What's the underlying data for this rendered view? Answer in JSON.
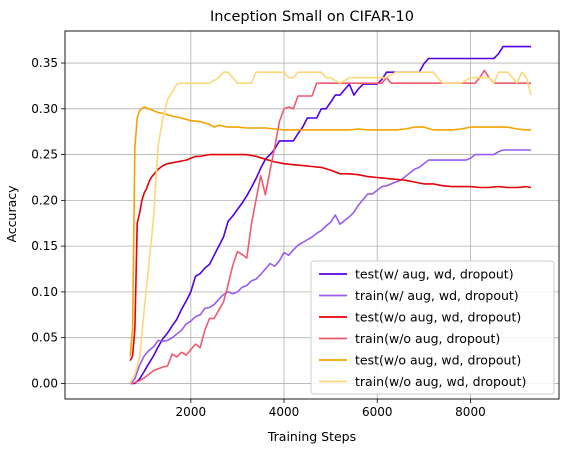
{
  "chart_data": {
    "type": "line",
    "title": "Inception Small on CIFAR-10",
    "xlabel": "Training Steps",
    "ylabel": "Accuracy",
    "xlim": [
      -700,
      9900
    ],
    "ylim": [
      -0.017,
      0.385
    ],
    "xticks": [
      2000,
      4000,
      6000,
      8000
    ],
    "xtick_labels": [
      "2000",
      "4000",
      "6000",
      "8000"
    ],
    "yticks": [
      0.0,
      0.05,
      0.1,
      0.15,
      0.2,
      0.25,
      0.3,
      0.35
    ],
    "ytick_labels": [
      "0.00",
      "0.05",
      "0.10",
      "0.15",
      "0.20",
      "0.25",
      "0.30",
      "0.35"
    ],
    "grid": true,
    "legend_position": "lower-right",
    "series": [
      {
        "name": "test(w/ aug, wd, dropout)",
        "color": "#5200e6",
        "x": [
          700,
          800,
          900,
          1000,
          1100,
          1200,
          1300,
          1400,
          1500,
          1600,
          1700,
          1800,
          1900,
          2000,
          2100,
          2200,
          2300,
          2400,
          2500,
          2600,
          2700,
          2800,
          2900,
          3000,
          3100,
          3200,
          3300,
          3400,
          3500,
          3600,
          3700,
          3800,
          3900,
          4000,
          4100,
          4200,
          4300,
          4400,
          4500,
          4600,
          4700,
          4800,
          4900,
          5000,
          5100,
          5200,
          5300,
          5400,
          5500,
          5600,
          5700,
          5800,
          5900,
          6000,
          6100,
          6200,
          6300,
          6400,
          6500,
          6600,
          6700,
          6800,
          6900,
          7000,
          7100,
          7200,
          7300,
          7400,
          7500,
          7600,
          7700,
          7800,
          7900,
          8000,
          8100,
          8200,
          8300,
          8400,
          8500,
          8600,
          8700,
          8800,
          8900,
          9000,
          9100,
          9200,
          9300
        ],
        "y": [
          0.0,
          0.0,
          0.005,
          0.013,
          0.022,
          0.03,
          0.04,
          0.049,
          0.055,
          0.063,
          0.07,
          0.081,
          0.09,
          0.1,
          0.117,
          0.12,
          0.126,
          0.13,
          0.14,
          0.15,
          0.16,
          0.177,
          0.183,
          0.19,
          0.197,
          0.205,
          0.214,
          0.224,
          0.235,
          0.245,
          0.25,
          0.256,
          0.265,
          0.265,
          0.265,
          0.265,
          0.273,
          0.28,
          0.29,
          0.29,
          0.29,
          0.3,
          0.3,
          0.307,
          0.315,
          0.315,
          0.321,
          0.327,
          0.315,
          0.322,
          0.327,
          0.327,
          0.327,
          0.327,
          0.332,
          0.34,
          0.34,
          0.34,
          0.34,
          0.34,
          0.34,
          0.34,
          0.34,
          0.349,
          0.355,
          0.355,
          0.355,
          0.355,
          0.355,
          0.355,
          0.355,
          0.355,
          0.355,
          0.355,
          0.355,
          0.355,
          0.355,
          0.355,
          0.355,
          0.36,
          0.368,
          0.368,
          0.368,
          0.368,
          0.368,
          0.368,
          0.368
        ]
      },
      {
        "name": "train(w/ aug, wd, dropout)",
        "color": "#9a5cf0",
        "x": [
          700,
          800,
          900,
          1000,
          1100,
          1200,
          1300,
          1400,
          1500,
          1600,
          1700,
          1800,
          1900,
          2000,
          2100,
          2200,
          2300,
          2400,
          2500,
          2600,
          2700,
          2800,
          2900,
          3000,
          3100,
          3200,
          3300,
          3400,
          3500,
          3600,
          3700,
          3800,
          3900,
          4000,
          4100,
          4200,
          4300,
          4400,
          4500,
          4600,
          4700,
          4800,
          4900,
          5000,
          5100,
          5200,
          5300,
          5400,
          5500,
          5600,
          5700,
          5800,
          5900,
          6000,
          6100,
          6200,
          6300,
          6400,
          6500,
          6600,
          6700,
          6800,
          6900,
          7000,
          7100,
          7200,
          7300,
          7400,
          7500,
          7600,
          7700,
          7800,
          7900,
          8000,
          8100,
          8200,
          8300,
          8400,
          8500,
          8600,
          8700,
          8800,
          8900,
          9000,
          9100,
          9200,
          9300
        ],
        "y": [
          0.0,
          0.005,
          0.02,
          0.03,
          0.036,
          0.04,
          0.047,
          0.046,
          0.047,
          0.05,
          0.054,
          0.058,
          0.065,
          0.068,
          0.073,
          0.075,
          0.082,
          0.083,
          0.086,
          0.092,
          0.097,
          0.1,
          0.098,
          0.1,
          0.105,
          0.107,
          0.112,
          0.114,
          0.119,
          0.125,
          0.131,
          0.128,
          0.134,
          0.143,
          0.14,
          0.146,
          0.151,
          0.154,
          0.157,
          0.16,
          0.164,
          0.167,
          0.172,
          0.176,
          0.184,
          0.174,
          0.178,
          0.182,
          0.187,
          0.195,
          0.201,
          0.207,
          0.207,
          0.211,
          0.215,
          0.216,
          0.218,
          0.22,
          0.222,
          0.226,
          0.23,
          0.234,
          0.236,
          0.24,
          0.244,
          0.244,
          0.244,
          0.244,
          0.244,
          0.244,
          0.244,
          0.244,
          0.244,
          0.246,
          0.25,
          0.25,
          0.25,
          0.25,
          0.25,
          0.253,
          0.255,
          0.255,
          0.255,
          0.255,
          0.255,
          0.255,
          0.255
        ]
      },
      {
        "name": "test(w/o aug, wd, dropout)",
        "color": "#e6000a",
        "x": [
          700,
          750,
          800,
          850,
          900,
          950,
          1000,
          1050,
          1100,
          1150,
          1200,
          1300,
          1400,
          1500,
          1600,
          1700,
          1800,
          1900,
          2000,
          2100,
          2200,
          2300,
          2400,
          2600,
          2800,
          3000,
          3200,
          3400,
          3600,
          3800,
          4000,
          4200,
          4400,
          4600,
          4800,
          5000,
          5200,
          5400,
          5600,
          5800,
          6000,
          6200,
          6400,
          6600,
          6800,
          7000,
          7200,
          7400,
          7600,
          7800,
          8000,
          8200,
          8400,
          8600,
          8800,
          9000,
          9200,
          9300
        ],
        "y": [
          0.025,
          0.03,
          0.06,
          0.175,
          0.186,
          0.2,
          0.208,
          0.213,
          0.22,
          0.225,
          0.228,
          0.234,
          0.238,
          0.24,
          0.241,
          0.242,
          0.243,
          0.244,
          0.246,
          0.248,
          0.248,
          0.249,
          0.25,
          0.25,
          0.25,
          0.25,
          0.25,
          0.248,
          0.245,
          0.242,
          0.24,
          0.239,
          0.238,
          0.237,
          0.236,
          0.233,
          0.229,
          0.229,
          0.228,
          0.226,
          0.225,
          0.224,
          0.223,
          0.222,
          0.22,
          0.218,
          0.218,
          0.216,
          0.215,
          0.215,
          0.215,
          0.214,
          0.214,
          0.215,
          0.214,
          0.214,
          0.215,
          0.214
        ]
      },
      {
        "name": "train(w/o aug, dropout)",
        "color": "#f05a6e",
        "x": [
          700,
          800,
          900,
          1000,
          1100,
          1200,
          1300,
          1400,
          1500,
          1600,
          1700,
          1800,
          1900,
          2000,
          2100,
          2200,
          2300,
          2400,
          2500,
          2600,
          2700,
          2800,
          2900,
          3000,
          3100,
          3200,
          3300,
          3400,
          3500,
          3600,
          3700,
          3800,
          3900,
          4000,
          4100,
          4200,
          4300,
          4400,
          4500,
          4600,
          4700,
          4800,
          4900,
          5000,
          5100,
          5200,
          5300,
          5400,
          5500,
          5600,
          5700,
          5800,
          5900,
          6000,
          6100,
          6200,
          6300,
          6400,
          6500,
          6600,
          6700,
          6800,
          6900,
          7000,
          7100,
          7200,
          7300,
          7400,
          7500,
          7600,
          7700,
          7800,
          7900,
          8000,
          8100,
          8200,
          8300,
          8400,
          8500,
          8600,
          8700,
          8800,
          8900,
          9000,
          9100,
          9200,
          9300
        ],
        "y": [
          0.0,
          0.001,
          0.003,
          0.006,
          0.01,
          0.014,
          0.016,
          0.018,
          0.019,
          0.032,
          0.029,
          0.034,
          0.031,
          0.037,
          0.043,
          0.039,
          0.058,
          0.071,
          0.071,
          0.08,
          0.089,
          0.108,
          0.129,
          0.144,
          0.141,
          0.137,
          0.174,
          0.201,
          0.227,
          0.206,
          0.233,
          0.258,
          0.286,
          0.3,
          0.302,
          0.3,
          0.314,
          0.314,
          0.314,
          0.314,
          0.328,
          0.328,
          0.328,
          0.328,
          0.328,
          0.328,
          0.328,
          0.328,
          0.328,
          0.328,
          0.328,
          0.328,
          0.328,
          0.328,
          0.328,
          0.334,
          0.328,
          0.328,
          0.328,
          0.328,
          0.328,
          0.328,
          0.328,
          0.328,
          0.328,
          0.328,
          0.328,
          0.328,
          0.328,
          0.328,
          0.328,
          0.328,
          0.328,
          0.328,
          0.328,
          0.334,
          0.342,
          0.334,
          0.328,
          0.328,
          0.328,
          0.328,
          0.328,
          0.328,
          0.328,
          0.328,
          0.328
        ]
      },
      {
        "name": "test(w/o aug, wd, dropout)",
        "color": "#f5a300",
        "x": [
          700,
          750,
          800,
          850,
          900,
          950,
          1000,
          1100,
          1200,
          1300,
          1400,
          1600,
          1800,
          2000,
          2200,
          2400,
          2500,
          2600,
          2800,
          3000,
          3200,
          3400,
          3600,
          3800,
          4000,
          4200,
          4400,
          4600,
          4800,
          5000,
          5200,
          5400,
          5600,
          5800,
          6000,
          6200,
          6400,
          6600,
          6800,
          7000,
          7200,
          7400,
          7600,
          7800,
          8000,
          8200,
          8400,
          8600,
          8800,
          9000,
          9200,
          9300
        ],
        "y": [
          0.03,
          0.06,
          0.258,
          0.29,
          0.298,
          0.3,
          0.302,
          0.3,
          0.298,
          0.296,
          0.295,
          0.292,
          0.29,
          0.287,
          0.286,
          0.283,
          0.28,
          0.282,
          0.28,
          0.28,
          0.279,
          0.279,
          0.279,
          0.278,
          0.277,
          0.277,
          0.277,
          0.277,
          0.277,
          0.277,
          0.277,
          0.277,
          0.278,
          0.277,
          0.277,
          0.277,
          0.277,
          0.278,
          0.28,
          0.28,
          0.277,
          0.277,
          0.277,
          0.278,
          0.28,
          0.28,
          0.28,
          0.28,
          0.28,
          0.278,
          0.277,
          0.277
        ]
      },
      {
        "name": "train(w/o aug, wd, dropout)",
        "color": "#fdd87a",
        "x": [
          700,
          800,
          900,
          1000,
          1100,
          1200,
          1300,
          1400,
          1500,
          1600,
          1700,
          1800,
          1900,
          2000,
          2200,
          2400,
          2600,
          2700,
          2800,
          2900,
          3000,
          3100,
          3200,
          3300,
          3400,
          3500,
          3600,
          3700,
          3800,
          3900,
          4000,
          4100,
          4200,
          4300,
          4400,
          4500,
          4600,
          4700,
          4800,
          4900,
          5000,
          5200,
          5400,
          5600,
          5800,
          6000,
          6200,
          6400,
          6600,
          6800,
          7000,
          7200,
          7300,
          7400,
          7600,
          7800,
          8000,
          8200,
          8400,
          8500,
          8600,
          8800,
          8900,
          9000,
          9100,
          9200,
          9300
        ],
        "y": [
          0.0,
          0.01,
          0.028,
          0.08,
          0.13,
          0.18,
          0.26,
          0.29,
          0.31,
          0.318,
          0.327,
          0.328,
          0.328,
          0.328,
          0.328,
          0.328,
          0.334,
          0.34,
          0.34,
          0.334,
          0.328,
          0.328,
          0.328,
          0.328,
          0.34,
          0.34,
          0.34,
          0.34,
          0.34,
          0.34,
          0.34,
          0.334,
          0.334,
          0.34,
          0.34,
          0.34,
          0.34,
          0.34,
          0.34,
          0.334,
          0.334,
          0.328,
          0.334,
          0.334,
          0.334,
          0.334,
          0.334,
          0.34,
          0.34,
          0.34,
          0.34,
          0.34,
          0.334,
          0.328,
          0.328,
          0.328,
          0.334,
          0.334,
          0.334,
          0.328,
          0.34,
          0.34,
          0.334,
          0.328,
          0.34,
          0.334,
          0.315
        ]
      }
    ]
  }
}
